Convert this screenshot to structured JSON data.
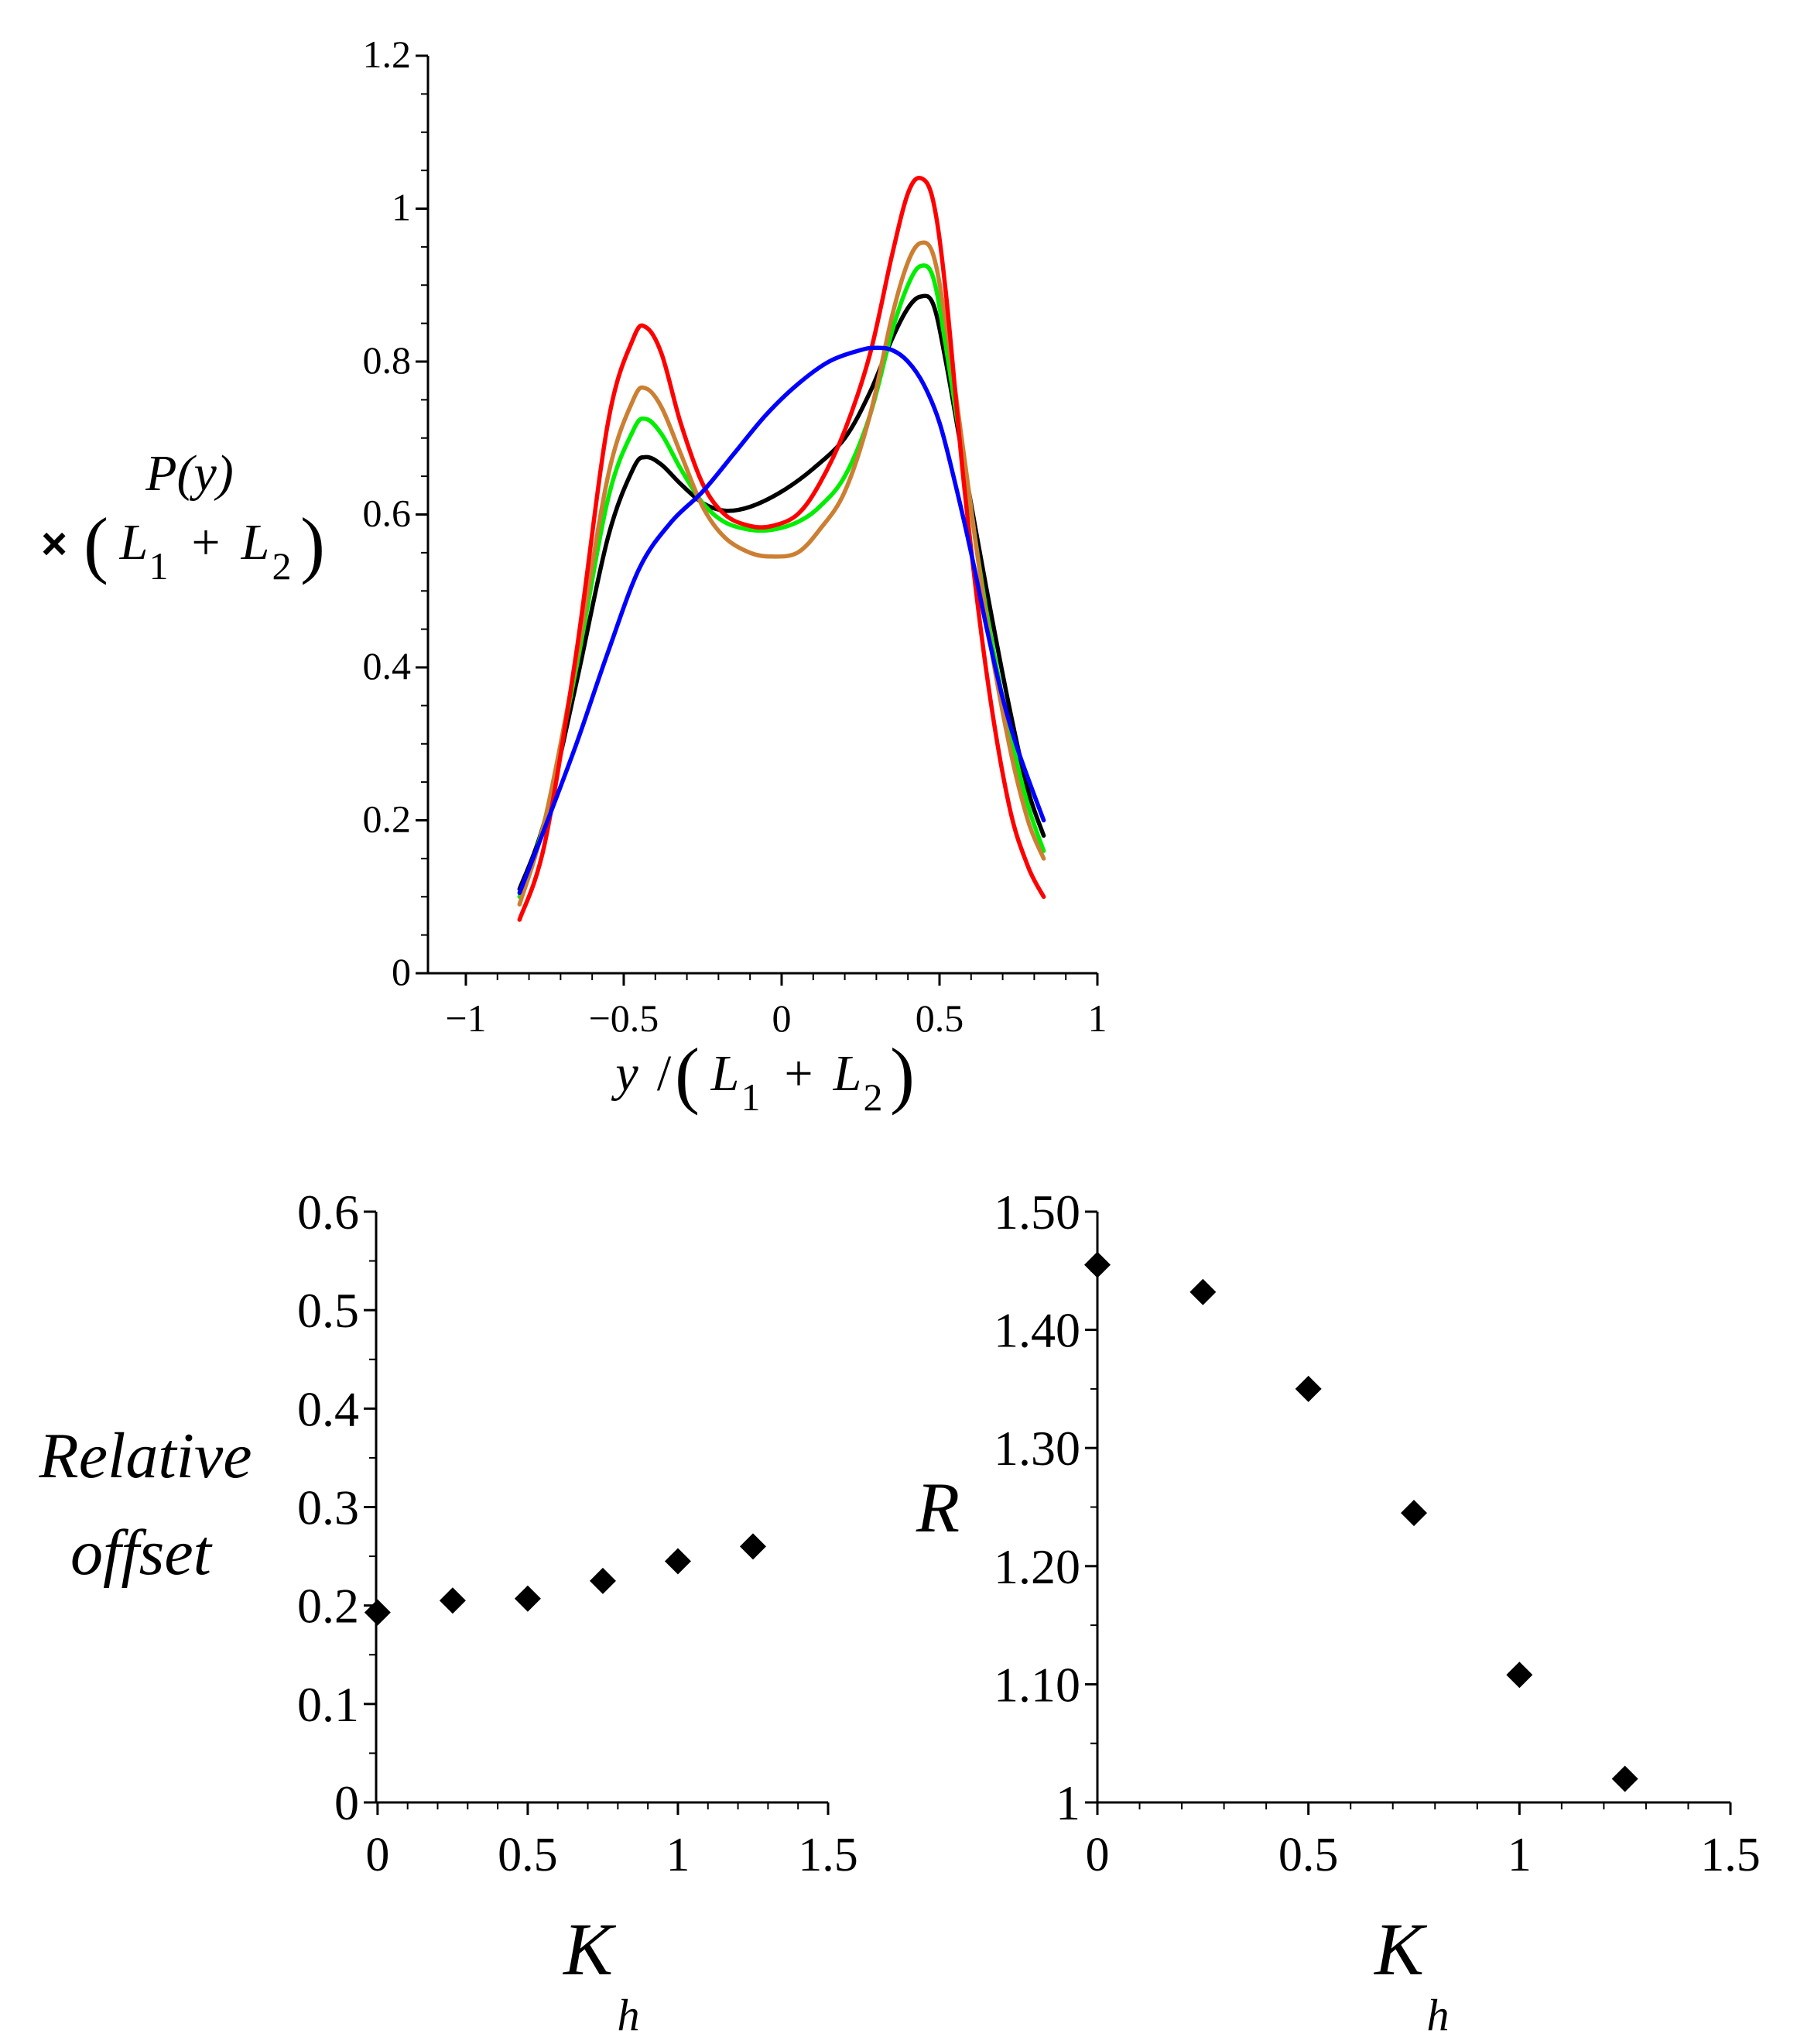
{
  "chart_data": [
    {
      "type": "line",
      "title": "",
      "ylabel": "P(y) × (L1 + L2)",
      "ylabel_parts": {
        "top": "P(y)",
        "times": "×",
        "open": "(",
        "L": "L",
        "sub1": "1",
        "plus": "+",
        "sub2": "2",
        "close": ")"
      },
      "xlabel": "y/(L1 + L2)",
      "xlabel_parts": {
        "y": "y",
        "slash": "/",
        "open": "(",
        "L": "L",
        "sub1": "1",
        "plus": "+",
        "sub2": "2",
        "close": ")"
      },
      "xlim": [
        -1.12,
        1.0
      ],
      "ylim": [
        0,
        1.2
      ],
      "xticks": [
        -1,
        -0.5,
        0,
        0.5,
        1
      ],
      "xtick_labels": [
        "−1",
        "−0.5",
        "0",
        "0.5",
        "1"
      ],
      "yticks": [
        0,
        0.2,
        0.4,
        0.6,
        0.8,
        1,
        1.2
      ],
      "ytick_labels": [
        "0",
        "0.2",
        "0.4",
        "0.6",
        "0.8",
        "1",
        "1.2"
      ],
      "grid": false,
      "legend": "none",
      "series": [
        {
          "name": "black",
          "color": "#000000",
          "x": [
            -0.83,
            -0.75,
            -0.65,
            -0.55,
            -0.47,
            -0.43,
            -0.38,
            -0.32,
            -0.25,
            -0.18,
            -0.1,
            0,
            0.1,
            0.2,
            0.28,
            0.35,
            0.4,
            0.44,
            0.48,
            0.52,
            0.58,
            0.65,
            0.72,
            0.78,
            0.83
          ],
          "y": [
            0.11,
            0.2,
            0.38,
            0.57,
            0.66,
            0.675,
            0.665,
            0.64,
            0.615,
            0.605,
            0.61,
            0.63,
            0.66,
            0.7,
            0.76,
            0.83,
            0.87,
            0.885,
            0.875,
            0.8,
            0.66,
            0.5,
            0.35,
            0.24,
            0.18
          ]
        },
        {
          "name": "green",
          "color": "#00ee00",
          "x": [
            -0.83,
            -0.75,
            -0.65,
            -0.55,
            -0.47,
            -0.43,
            -0.38,
            -0.32,
            -0.25,
            -0.18,
            -0.1,
            -0.03,
            0.05,
            0.12,
            0.2,
            0.28,
            0.35,
            0.4,
            0.44,
            0.48,
            0.52,
            0.58,
            0.65,
            0.72,
            0.78,
            0.83
          ],
          "y": [
            0.1,
            0.2,
            0.4,
            0.62,
            0.71,
            0.725,
            0.705,
            0.66,
            0.615,
            0.59,
            0.58,
            0.58,
            0.59,
            0.61,
            0.65,
            0.73,
            0.84,
            0.9,
            0.925,
            0.91,
            0.82,
            0.66,
            0.47,
            0.32,
            0.22,
            0.16
          ]
        },
        {
          "name": "orange",
          "color": "#cc7f33",
          "x": [
            -0.83,
            -0.75,
            -0.65,
            -0.55,
            -0.47,
            -0.43,
            -0.38,
            -0.32,
            -0.25,
            -0.18,
            -0.1,
            -0.03,
            0.05,
            0.12,
            0.2,
            0.28,
            0.35,
            0.4,
            0.44,
            0.48,
            0.52,
            0.58,
            0.65,
            0.72,
            0.78,
            0.83
          ],
          "y": [
            0.09,
            0.2,
            0.41,
            0.65,
            0.75,
            0.765,
            0.74,
            0.68,
            0.61,
            0.57,
            0.55,
            0.545,
            0.55,
            0.58,
            0.63,
            0.73,
            0.86,
            0.93,
            0.955,
            0.94,
            0.85,
            0.67,
            0.46,
            0.3,
            0.2,
            0.15
          ]
        },
        {
          "name": "red",
          "color": "#ff0000",
          "x": [
            -0.83,
            -0.75,
            -0.65,
            -0.55,
            -0.47,
            -0.43,
            -0.38,
            -0.32,
            -0.25,
            -0.18,
            -0.1,
            -0.03,
            0.05,
            0.12,
            0.2,
            0.28,
            0.35,
            0.4,
            0.44,
            0.48,
            0.52,
            0.58,
            0.65,
            0.72,
            0.78,
            0.83
          ],
          "y": [
            0.07,
            0.17,
            0.42,
            0.72,
            0.83,
            0.845,
            0.81,
            0.72,
            0.64,
            0.6,
            0.585,
            0.585,
            0.6,
            0.64,
            0.71,
            0.81,
            0.94,
            1.02,
            1.04,
            1.01,
            0.89,
            0.63,
            0.39,
            0.22,
            0.14,
            0.1
          ]
        },
        {
          "name": "blue",
          "color": "#0000ff",
          "x": [
            -0.83,
            -0.75,
            -0.65,
            -0.55,
            -0.45,
            -0.35,
            -0.25,
            -0.15,
            -0.05,
            0.05,
            0.15,
            0.25,
            0.3,
            0.35,
            0.4,
            0.45,
            0.5,
            0.55,
            0.6,
            0.65,
            0.7,
            0.75,
            0.83
          ],
          "y": [
            0.105,
            0.19,
            0.3,
            0.42,
            0.53,
            0.59,
            0.63,
            0.68,
            0.73,
            0.77,
            0.8,
            0.815,
            0.818,
            0.815,
            0.8,
            0.77,
            0.72,
            0.64,
            0.55,
            0.45,
            0.36,
            0.29,
            0.2
          ]
        }
      ]
    },
    {
      "type": "scatter",
      "title": "",
      "ylabel": "Relative offset",
      "ylabel_lines": [
        "Relative",
        "offset"
      ],
      "xlabel": "Kh",
      "xlabel_parts": {
        "K": "K",
        "sub": "h"
      },
      "xlim": [
        -0.01,
        1.5
      ],
      "ylim": [
        0,
        0.6
      ],
      "xticks": [
        0,
        0.5,
        1,
        1.5
      ],
      "xtick_labels": [
        "0",
        "0.5",
        "1",
        "1.5"
      ],
      "yticks": [
        0,
        0.1,
        0.2,
        0.3,
        0.4,
        0.5,
        0.6
      ],
      "ytick_labels": [
        "0",
        "0.1",
        "0.2",
        "0.3",
        "0.4",
        "0.5",
        "0.6"
      ],
      "grid": false,
      "legend": "none",
      "marker": "diamond",
      "x": [
        0,
        0.25,
        0.5,
        0.75,
        1.0,
        1.25
      ],
      "y": [
        0.193,
        0.205,
        0.207,
        0.225,
        0.245,
        0.26
      ]
    },
    {
      "type": "scatter",
      "title": "",
      "ylabel": "R",
      "xlabel": "Kh",
      "xlabel_parts": {
        "K": "K",
        "sub": "h"
      },
      "xlim": [
        0,
        1.5
      ],
      "ylim": [
        1.0,
        1.5
      ],
      "xticks": [
        0,
        0.5,
        1,
        1.5
      ],
      "xtick_labels": [
        "0",
        "0.5",
        "1",
        "1.5"
      ],
      "yticks": [
        1.0,
        1.1,
        1.2,
        1.3,
        1.4,
        1.5
      ],
      "ytick_labels": [
        "1",
        "1.10",
        "1.20",
        "1.30",
        "1.40",
        "1.50"
      ],
      "grid": false,
      "legend": "none",
      "marker": "diamond",
      "x": [
        0,
        0.25,
        0.5,
        0.75,
        1.0,
        1.25
      ],
      "y": [
        1.455,
        1.432,
        1.35,
        1.245,
        1.108,
        1.02
      ]
    }
  ]
}
